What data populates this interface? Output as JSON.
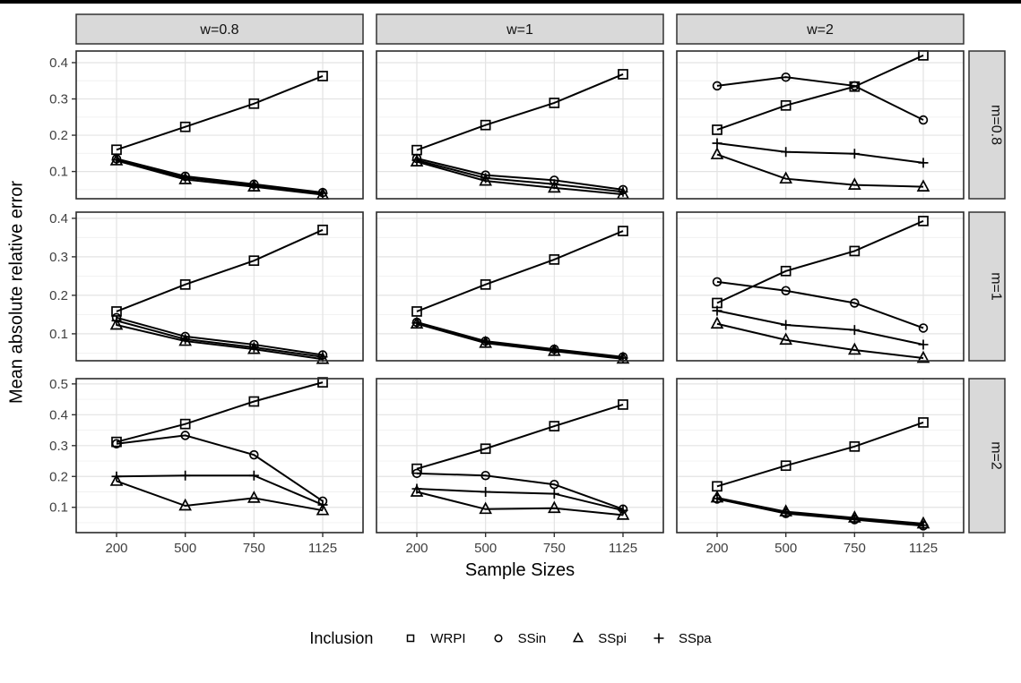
{
  "axes": {
    "x_label": "Sample Sizes",
    "y_label": "Mean absolute relative error"
  },
  "legend": {
    "title": "Inclusion",
    "items": [
      {
        "label": "WRPI",
        "marker": "square"
      },
      {
        "label": "SSin",
        "marker": "circle"
      },
      {
        "label": "SSpi",
        "marker": "triangle"
      },
      {
        "label": "SSpa",
        "marker": "plus"
      }
    ]
  },
  "colors": {
    "top_bar": "#000000",
    "strip_bg": "#d9d9d9",
    "strip_border": "#333333",
    "panel_border": "#2b2b2b",
    "panel_bg": "#ffffff",
    "grid_major": "#e3e3e3",
    "grid_minor": "#f0f0f0",
    "tick_mark": "#333333",
    "tick_label": "#404040",
    "series": "#000000"
  },
  "chart_data": {
    "type": "line",
    "title": "",
    "xlabel": "Sample Sizes",
    "ylabel": "Mean absolute relative error",
    "x_categories": [
      "200",
      "500",
      "750",
      "1125"
    ],
    "x_scale": "categorical",
    "grid": {
      "major": true,
      "minor": true
    },
    "legend_position": "bottom",
    "col_facets": [
      "w=0.8",
      "w=1",
      "w=2"
    ],
    "row_facets": [
      "m=0.8",
      "m=1",
      "m=2"
    ],
    "rows": [
      {
        "facet": "m=0.8",
        "ylim": [
          0.025,
          0.432
        ],
        "yticks": [
          0.1,
          0.2,
          0.3,
          0.4
        ]
      },
      {
        "facet": "m=1",
        "ylim": [
          0.03,
          0.416
        ],
        "yticks": [
          0.1,
          0.2,
          0.3,
          0.4
        ]
      },
      {
        "facet": "m=2",
        "ylim": [
          0.018,
          0.517
        ],
        "yticks": [
          0.1,
          0.2,
          0.3,
          0.4,
          0.5
        ]
      }
    ],
    "series_order": [
      "WRPI",
      "SSin",
      "SSpi",
      "SSpa"
    ],
    "markers": {
      "WRPI": "square",
      "SSin": "circle",
      "SSpi": "triangle",
      "SSpa": "plus"
    },
    "panels": [
      {
        "row": 0,
        "col": 0,
        "row_facet": "m=0.8",
        "col_facet": "w=0.8",
        "series": {
          "WRPI": [
            0.16,
            0.223,
            0.287,
            0.363
          ],
          "SSin": [
            0.135,
            0.087,
            0.065,
            0.042
          ],
          "SSpi": [
            0.13,
            0.078,
            0.058,
            0.036
          ],
          "SSpa": [
            0.132,
            0.083,
            0.062,
            0.04
          ]
        }
      },
      {
        "row": 0,
        "col": 1,
        "row_facet": "m=0.8",
        "col_facet": "w=1",
        "series": {
          "WRPI": [
            0.159,
            0.228,
            0.289,
            0.368
          ],
          "SSin": [
            0.136,
            0.09,
            0.076,
            0.05
          ],
          "SSpi": [
            0.127,
            0.074,
            0.055,
            0.037
          ],
          "SSpa": [
            0.131,
            0.082,
            0.065,
            0.044
          ]
        }
      },
      {
        "row": 0,
        "col": 2,
        "row_facet": "m=0.8",
        "col_facet": "w=2",
        "series": {
          "WRPI": [
            0.215,
            0.282,
            0.334,
            0.42
          ],
          "SSin": [
            0.336,
            0.36,
            0.336,
            0.242
          ],
          "SSpi": [
            0.147,
            0.08,
            0.063,
            0.058
          ],
          "SSpa": [
            0.178,
            0.154,
            0.149,
            0.124
          ]
        }
      },
      {
        "row": 1,
        "col": 0,
        "row_facet": "m=1",
        "col_facet": "w=0.8",
        "series": {
          "WRPI": [
            0.158,
            0.228,
            0.29,
            0.37
          ],
          "SSin": [
            0.142,
            0.093,
            0.072,
            0.045
          ],
          "SSpi": [
            0.123,
            0.081,
            0.06,
            0.034
          ],
          "SSpa": [
            0.134,
            0.086,
            0.065,
            0.04
          ]
        }
      },
      {
        "row": 1,
        "col": 1,
        "row_facet": "m=1",
        "col_facet": "w=1",
        "series": {
          "WRPI": [
            0.158,
            0.228,
            0.293,
            0.367
          ],
          "SSin": [
            0.13,
            0.081,
            0.06,
            0.04
          ],
          "SSpi": [
            0.126,
            0.076,
            0.055,
            0.035
          ],
          "SSpa": [
            0.128,
            0.079,
            0.057,
            0.037
          ]
        }
      },
      {
        "row": 1,
        "col": 2,
        "row_facet": "m=1",
        "col_facet": "w=2",
        "series": {
          "WRPI": [
            0.18,
            0.263,
            0.315,
            0.393
          ],
          "SSin": [
            0.235,
            0.212,
            0.18,
            0.115
          ],
          "SSpi": [
            0.126,
            0.084,
            0.058,
            0.037
          ],
          "SSpa": [
            0.16,
            0.123,
            0.11,
            0.072
          ]
        }
      },
      {
        "row": 2,
        "col": 0,
        "row_facet": "m=2",
        "col_facet": "w=0.8",
        "series": {
          "WRPI": [
            0.312,
            0.37,
            0.443,
            0.505
          ],
          "SSin": [
            0.306,
            0.333,
            0.27,
            0.12
          ],
          "SSpi": [
            0.185,
            0.105,
            0.13,
            0.09
          ],
          "SSpa": [
            0.2,
            0.203,
            0.203,
            0.108
          ]
        }
      },
      {
        "row": 2,
        "col": 1,
        "row_facet": "m=2",
        "col_facet": "w=1",
        "series": {
          "WRPI": [
            0.225,
            0.29,
            0.363,
            0.433
          ],
          "SSin": [
            0.21,
            0.203,
            0.174,
            0.094
          ],
          "SSpi": [
            0.15,
            0.094,
            0.097,
            0.075
          ],
          "SSpa": [
            0.16,
            0.15,
            0.144,
            0.09
          ]
        }
      },
      {
        "row": 2,
        "col": 2,
        "row_facet": "m=2",
        "col_facet": "w=2",
        "series": {
          "WRPI": [
            0.168,
            0.235,
            0.297,
            0.375
          ],
          "SSin": [
            0.127,
            0.08,
            0.06,
            0.04
          ],
          "SSpi": [
            0.131,
            0.086,
            0.066,
            0.047
          ],
          "SSpa": [
            0.128,
            0.082,
            0.062,
            0.042
          ]
        }
      }
    ]
  }
}
